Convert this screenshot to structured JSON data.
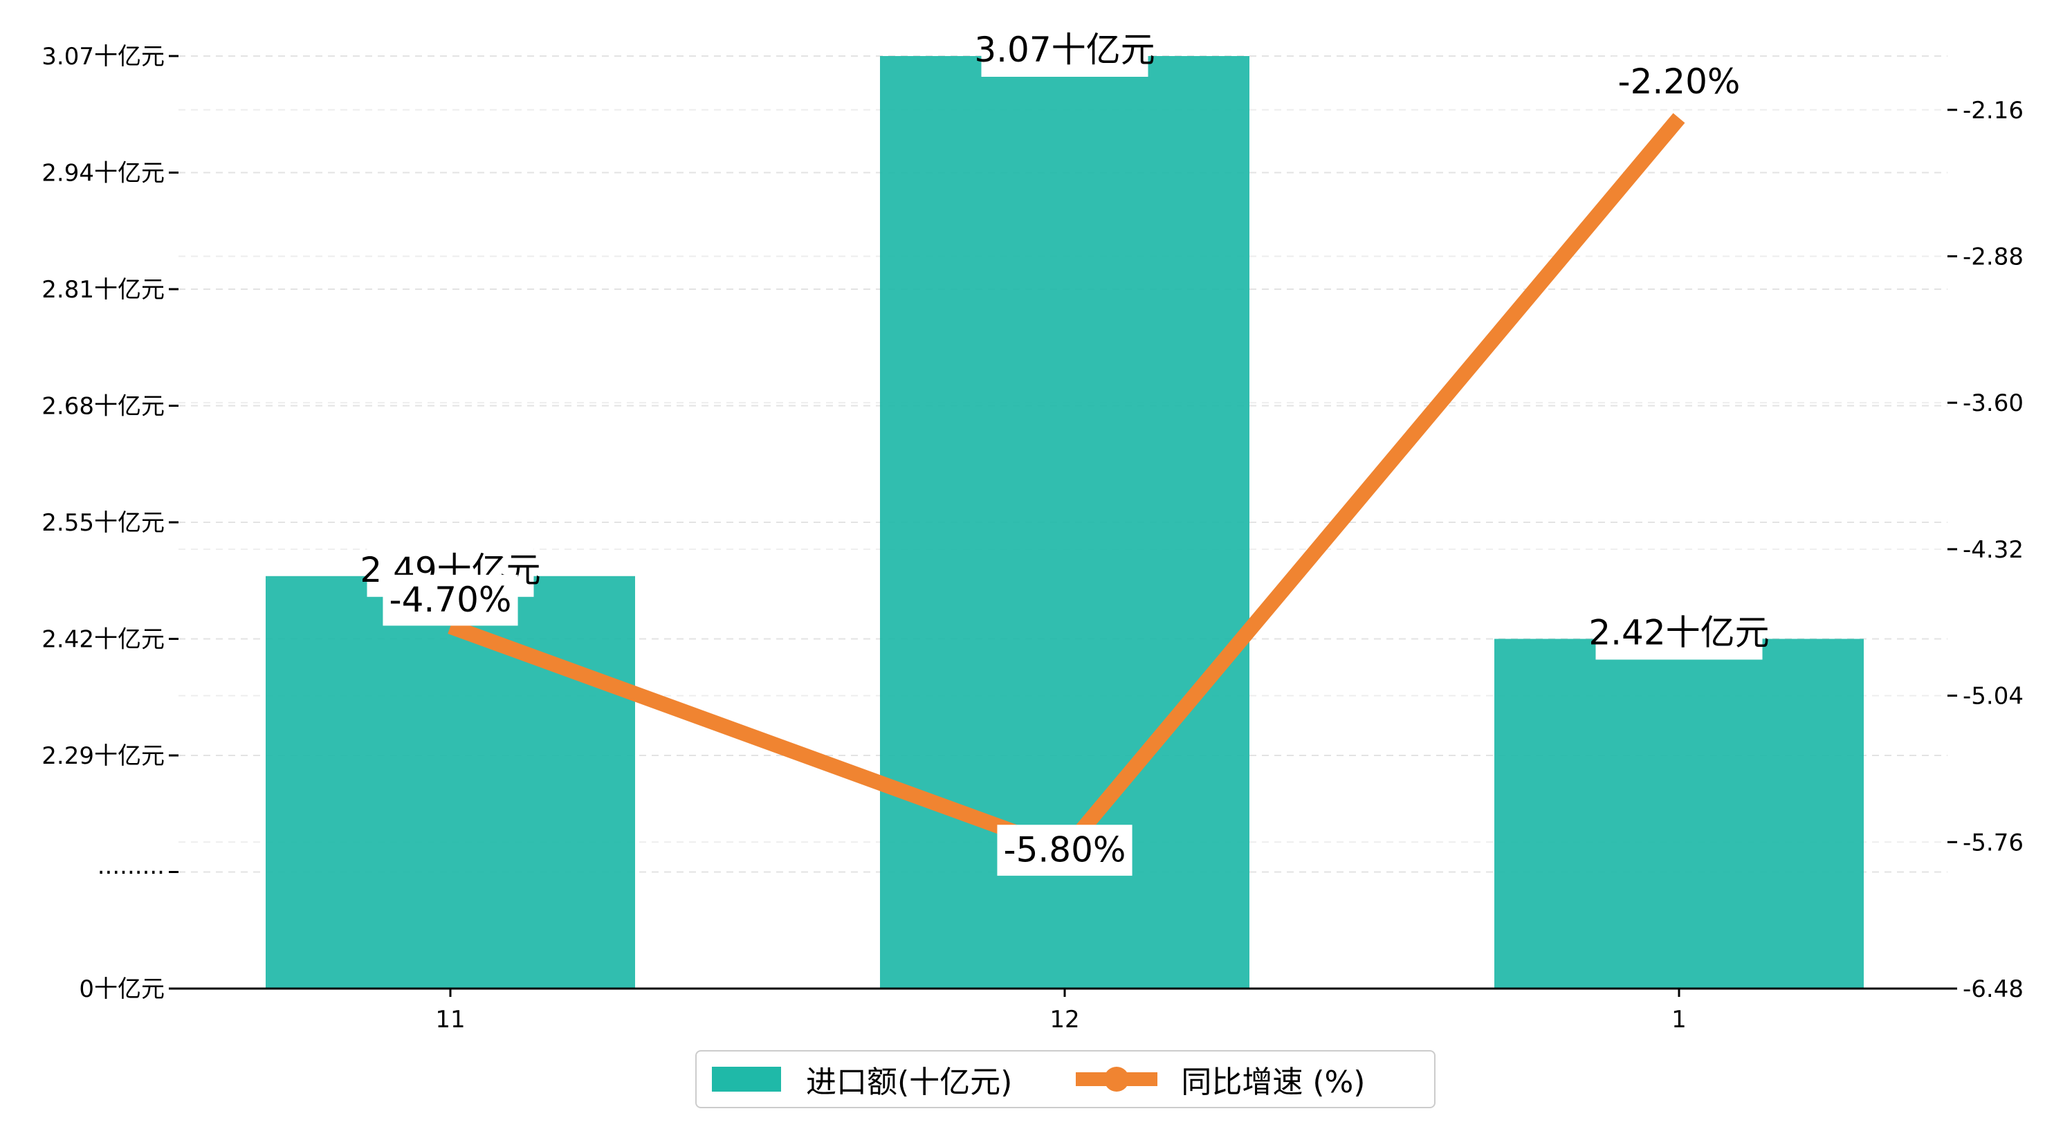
{
  "chart_data": {
    "type": "bar",
    "categories": [
      "11",
      "12",
      "1"
    ],
    "series": [
      {
        "name": "进口额(十亿元)",
        "axis": "left",
        "values": [
          2.49,
          3.07,
          2.42
        ],
        "data_labels": [
          "2.49十亿元",
          "3.07十亿元",
          "2.42十亿元"
        ],
        "color": "#1fb9a8"
      },
      {
        "name": "同比增速 (%)",
        "type": "line",
        "axis": "right",
        "values": [
          -4.7,
          -5.8,
          -2.2
        ],
        "data_labels": [
          "-4.70%",
          "-5.80%",
          "-2.20%"
        ],
        "color": "#f08431"
      }
    ],
    "y_left": {
      "tick_values": [
        0,
        2.16,
        2.29,
        2.42,
        2.55,
        2.68,
        2.81,
        2.94,
        3.07
      ],
      "tick_labels": [
        "0十亿元",
        "·········",
        "2.29十亿元",
        "2.42十亿元",
        "2.55十亿元",
        "2.68十亿元",
        "2.81十亿元",
        "2.94十亿元",
        "3.07十亿元"
      ],
      "broken_axis": true
    },
    "y_right": {
      "tick_values": [
        -6.48,
        -5.76,
        -5.04,
        -4.32,
        -3.6,
        -2.88,
        -2.16
      ],
      "tick_labels": [
        "-6.48",
        "-5.76",
        "-5.04",
        "-4.32",
        "-3.60",
        "-2.88",
        "-2.16"
      ],
      "ylim": [
        -6.48,
        -1.62
      ]
    },
    "grid": true,
    "legend_position": "bottom-center"
  }
}
